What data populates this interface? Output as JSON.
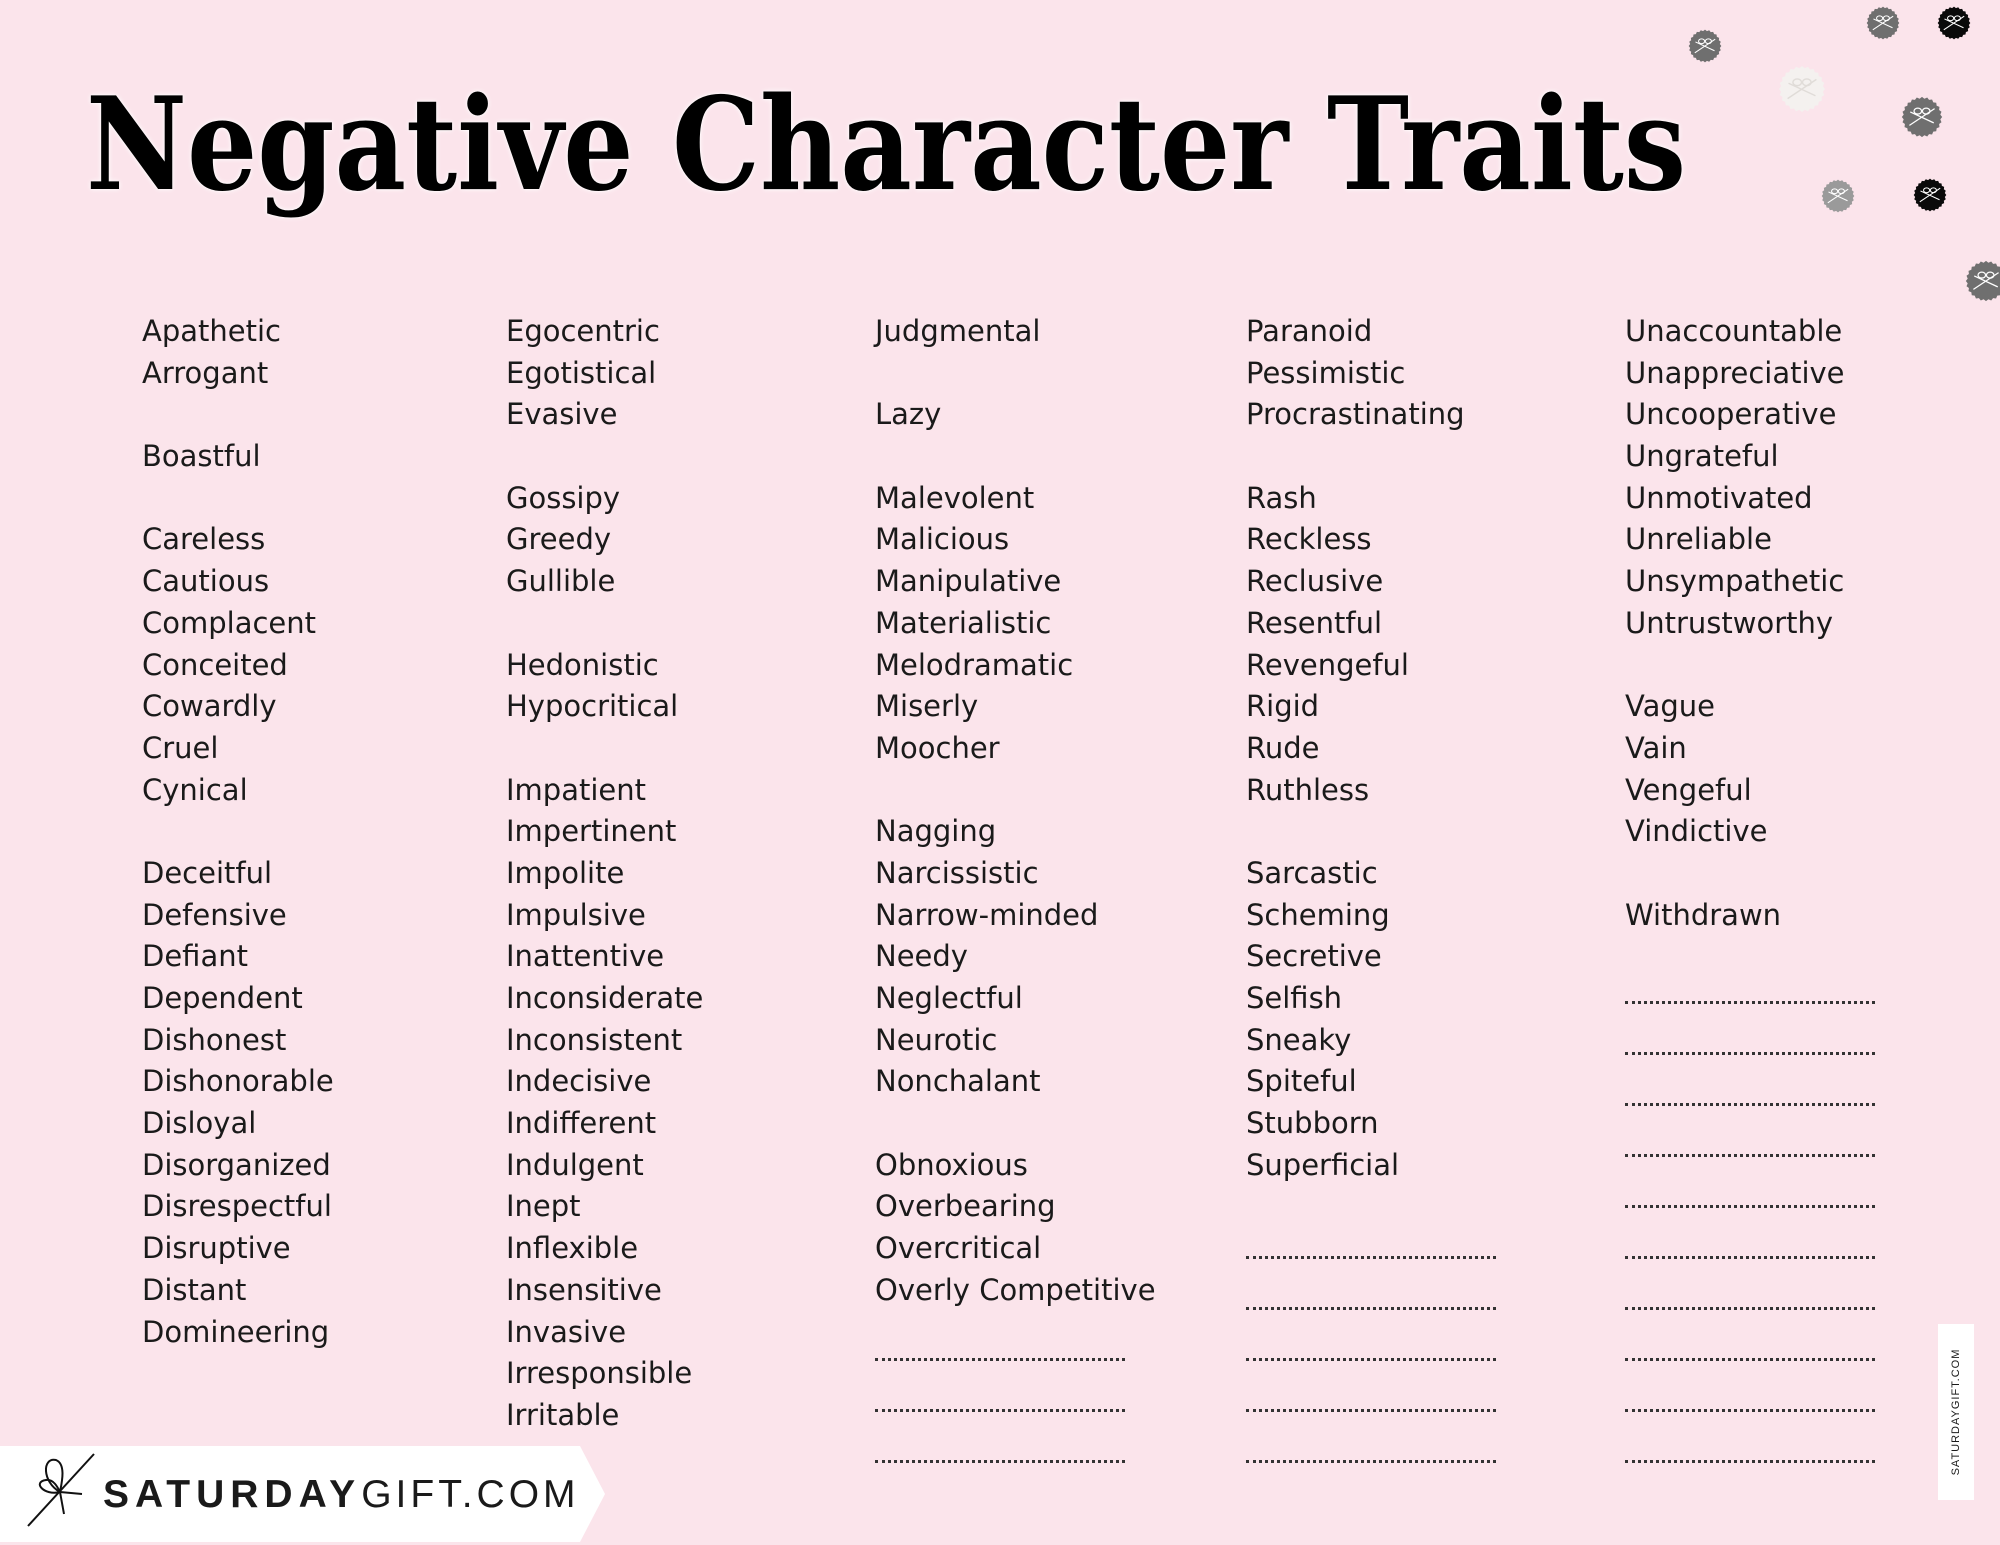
{
  "title": "Negative Character Traits",
  "columns": [
    [
      "Apathetic",
      "Arrogant",
      "",
      "Boastful",
      "",
      "Careless",
      "Cautious",
      "Complacent",
      "Conceited",
      "Cowardly",
      "Cruel",
      "Cynical",
      "",
      "Deceitful",
      "Defensive",
      "Defiant",
      "Dependent",
      "Dishonest",
      "Dishonorable",
      "Disloyal",
      "Disorganized",
      "Disrespectful",
      "Disruptive",
      "Distant",
      "Domineering"
    ],
    [
      "Egocentric",
      "Egotistical",
      "Evasive",
      "",
      "Gossipy",
      "Greedy",
      "Gullible",
      "",
      "Hedonistic",
      "Hypocritical",
      "",
      "Impatient",
      "Impertinent",
      "Impolite",
      "Impulsive",
      "Inattentive",
      "Inconsiderate",
      "Inconsistent",
      "Indecisive",
      "Indifferent",
      "Indulgent",
      "Inept",
      "Inflexible",
      "Insensitive",
      "Invasive",
      "Irresponsible",
      "Irritable"
    ],
    [
      "Judgmental",
      "",
      "Lazy",
      "",
      "Malevolent",
      "Malicious",
      "Manipulative",
      "Materialistic",
      "Melodramatic",
      "Miserly",
      "Moocher",
      "",
      "Nagging",
      "Narcissistic",
      "Narrow-minded",
      "Needy",
      "Neglectful",
      "Neurotic",
      "Nonchalant",
      "",
      "Obnoxious",
      "Overbearing",
      "Overcritical",
      "Overly Competitive"
    ],
    [
      "Paranoid",
      "Pessimistic",
      "Procrastinating",
      "",
      "Rash",
      "Reckless",
      "Reclusive",
      "Resentful",
      "Revengeful",
      "Rigid",
      "Rude",
      "Ruthless",
      "",
      "Sarcastic",
      "Scheming",
      "Secretive",
      "Selfish",
      "Sneaky",
      "Spiteful",
      "Stubborn",
      "Superficial"
    ],
    [
      "Unaccountable",
      "Unappreciative",
      "Uncooperative",
      "Ungrateful",
      "Unmotivated",
      "Unreliable",
      "Unsympathetic",
      "Untrustworthy",
      "",
      "Vague",
      "Vain",
      "Vengeful",
      "Vindictive",
      "",
      "Withdrawn"
    ]
  ],
  "blank_lines_per_column": [
    0,
    0,
    3,
    5,
    10
  ],
  "brand": {
    "bold": "SATURDAY",
    "light": "GIFT.COM",
    "vertical": "SATURDAYGIFT.COM"
  },
  "colors": {
    "background": "#fbe4eb",
    "text": "#1a1a1a",
    "title": "#000000"
  },
  "decorations": [
    "gift-badge-gray",
    "gift-badge-gray",
    "gift-badge-black",
    "gift-badge-white",
    "gift-badge-gray",
    "gift-badge-lightgray",
    "gift-badge-black",
    "gift-badge-gray"
  ]
}
